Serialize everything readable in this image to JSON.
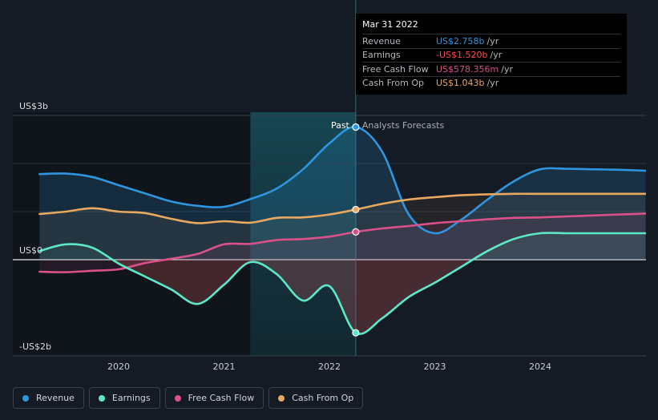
{
  "chart_data": {
    "type": "line",
    "y_unit_labels": [
      "US$3b",
      "US$0",
      "-US$2b"
    ],
    "y_ticks": [
      3,
      0,
      -2
    ],
    "ylim": [
      -2.2,
      3.0
    ],
    "xlim": [
      2019.25,
      2025.0
    ],
    "x_ticks": [
      2020,
      2021,
      2022,
      2023,
      2024
    ],
    "x_tick_labels": [
      "2020",
      "2021",
      "2022",
      "2023",
      "2024"
    ],
    "divider_x": 2022.25,
    "highlight_range": [
      2021.25,
      2022.25
    ],
    "past_label": "Past",
    "forecast_label": "Analysts Forecasts",
    "series": [
      {
        "name": "Revenue",
        "color": "#2e95e0",
        "x": [
          2019.25,
          2019.5,
          2019.75,
          2020.0,
          2020.25,
          2020.5,
          2020.75,
          2021.0,
          2021.25,
          2021.5,
          2021.75,
          2022.0,
          2022.25,
          2022.5,
          2022.75,
          2023.0,
          2023.25,
          2023.5,
          2023.75,
          2024.0,
          2024.25,
          2024.5,
          2024.75,
          2025.0
        ],
        "y": [
          1.78,
          1.79,
          1.72,
          1.55,
          1.38,
          1.21,
          1.12,
          1.1,
          1.26,
          1.48,
          1.88,
          2.42,
          2.758,
          2.25,
          0.95,
          0.55,
          0.83,
          1.25,
          1.63,
          1.88,
          1.89,
          1.88,
          1.87,
          1.85
        ]
      },
      {
        "name": "Earnings",
        "color": "#5ce8c8",
        "x": [
          2019.25,
          2019.5,
          2019.75,
          2020.0,
          2020.25,
          2020.5,
          2020.75,
          2021.0,
          2021.25,
          2021.5,
          2021.75,
          2022.0,
          2022.25,
          2022.5,
          2022.75,
          2023.0,
          2023.25,
          2023.5,
          2023.75,
          2024.0,
          2024.25,
          2024.5,
          2024.75,
          2025.0
        ],
        "y": [
          0.18,
          0.32,
          0.25,
          -0.08,
          -0.35,
          -0.62,
          -0.92,
          -0.52,
          -0.05,
          -0.3,
          -0.85,
          -0.55,
          -1.52,
          -1.22,
          -0.78,
          -0.48,
          -0.15,
          0.18,
          0.43,
          0.55,
          0.55,
          0.55,
          0.55,
          0.55
        ]
      },
      {
        "name": "Free Cash Flow",
        "color": "#d9508a",
        "x": [
          2019.25,
          2019.5,
          2019.75,
          2020.0,
          2020.25,
          2020.5,
          2020.75,
          2021.0,
          2021.25,
          2021.5,
          2021.75,
          2022.0,
          2022.25,
          2022.5,
          2022.75,
          2023.0,
          2023.25,
          2023.5,
          2023.75,
          2024.0,
          2024.25,
          2024.5,
          2024.75,
          2025.0
        ],
        "y": [
          -0.25,
          -0.26,
          -0.23,
          -0.2,
          -0.07,
          0.02,
          0.12,
          0.32,
          0.33,
          0.41,
          0.43,
          0.48,
          0.578,
          0.65,
          0.7,
          0.76,
          0.8,
          0.84,
          0.87,
          0.88,
          0.9,
          0.92,
          0.94,
          0.96
        ]
      },
      {
        "name": "Cash From Op",
        "color": "#e8a860",
        "x": [
          2019.25,
          2019.5,
          2019.75,
          2020.0,
          2020.25,
          2020.5,
          2020.75,
          2021.0,
          2021.25,
          2021.5,
          2021.75,
          2022.0,
          2022.25,
          2022.5,
          2022.75,
          2023.0,
          2023.25,
          2023.5,
          2023.75,
          2024.0,
          2024.25,
          2024.5,
          2024.75,
          2025.0
        ],
        "y": [
          0.95,
          1.0,
          1.07,
          1.0,
          0.97,
          0.85,
          0.76,
          0.8,
          0.77,
          0.87,
          0.88,
          0.94,
          1.043,
          1.16,
          1.25,
          1.3,
          1.34,
          1.36,
          1.37,
          1.37,
          1.37,
          1.37,
          1.37,
          1.37
        ]
      }
    ]
  },
  "tooltip": {
    "date": "Mar 31 2022",
    "rows": [
      {
        "label": "Revenue",
        "value": "US$2.758b",
        "unit": "/yr",
        "color": "#2e95e0"
      },
      {
        "label": "Earnings",
        "value": "-US$1.520b",
        "unit": "/yr",
        "color": "#ff4a4a"
      },
      {
        "label": "Free Cash Flow",
        "value": "US$578.356m",
        "unit": "/yr",
        "color": "#d9508a"
      },
      {
        "label": "Cash From Op",
        "value": "US$1.043b",
        "unit": "/yr",
        "color": "#e8a860"
      }
    ]
  },
  "legend": [
    {
      "label": "Revenue",
      "color": "#2e95e0"
    },
    {
      "label": "Earnings",
      "color": "#5ce8c8"
    },
    {
      "label": "Free Cash Flow",
      "color": "#d9508a"
    },
    {
      "label": "Cash From Op",
      "color": "#e8a860"
    }
  ]
}
